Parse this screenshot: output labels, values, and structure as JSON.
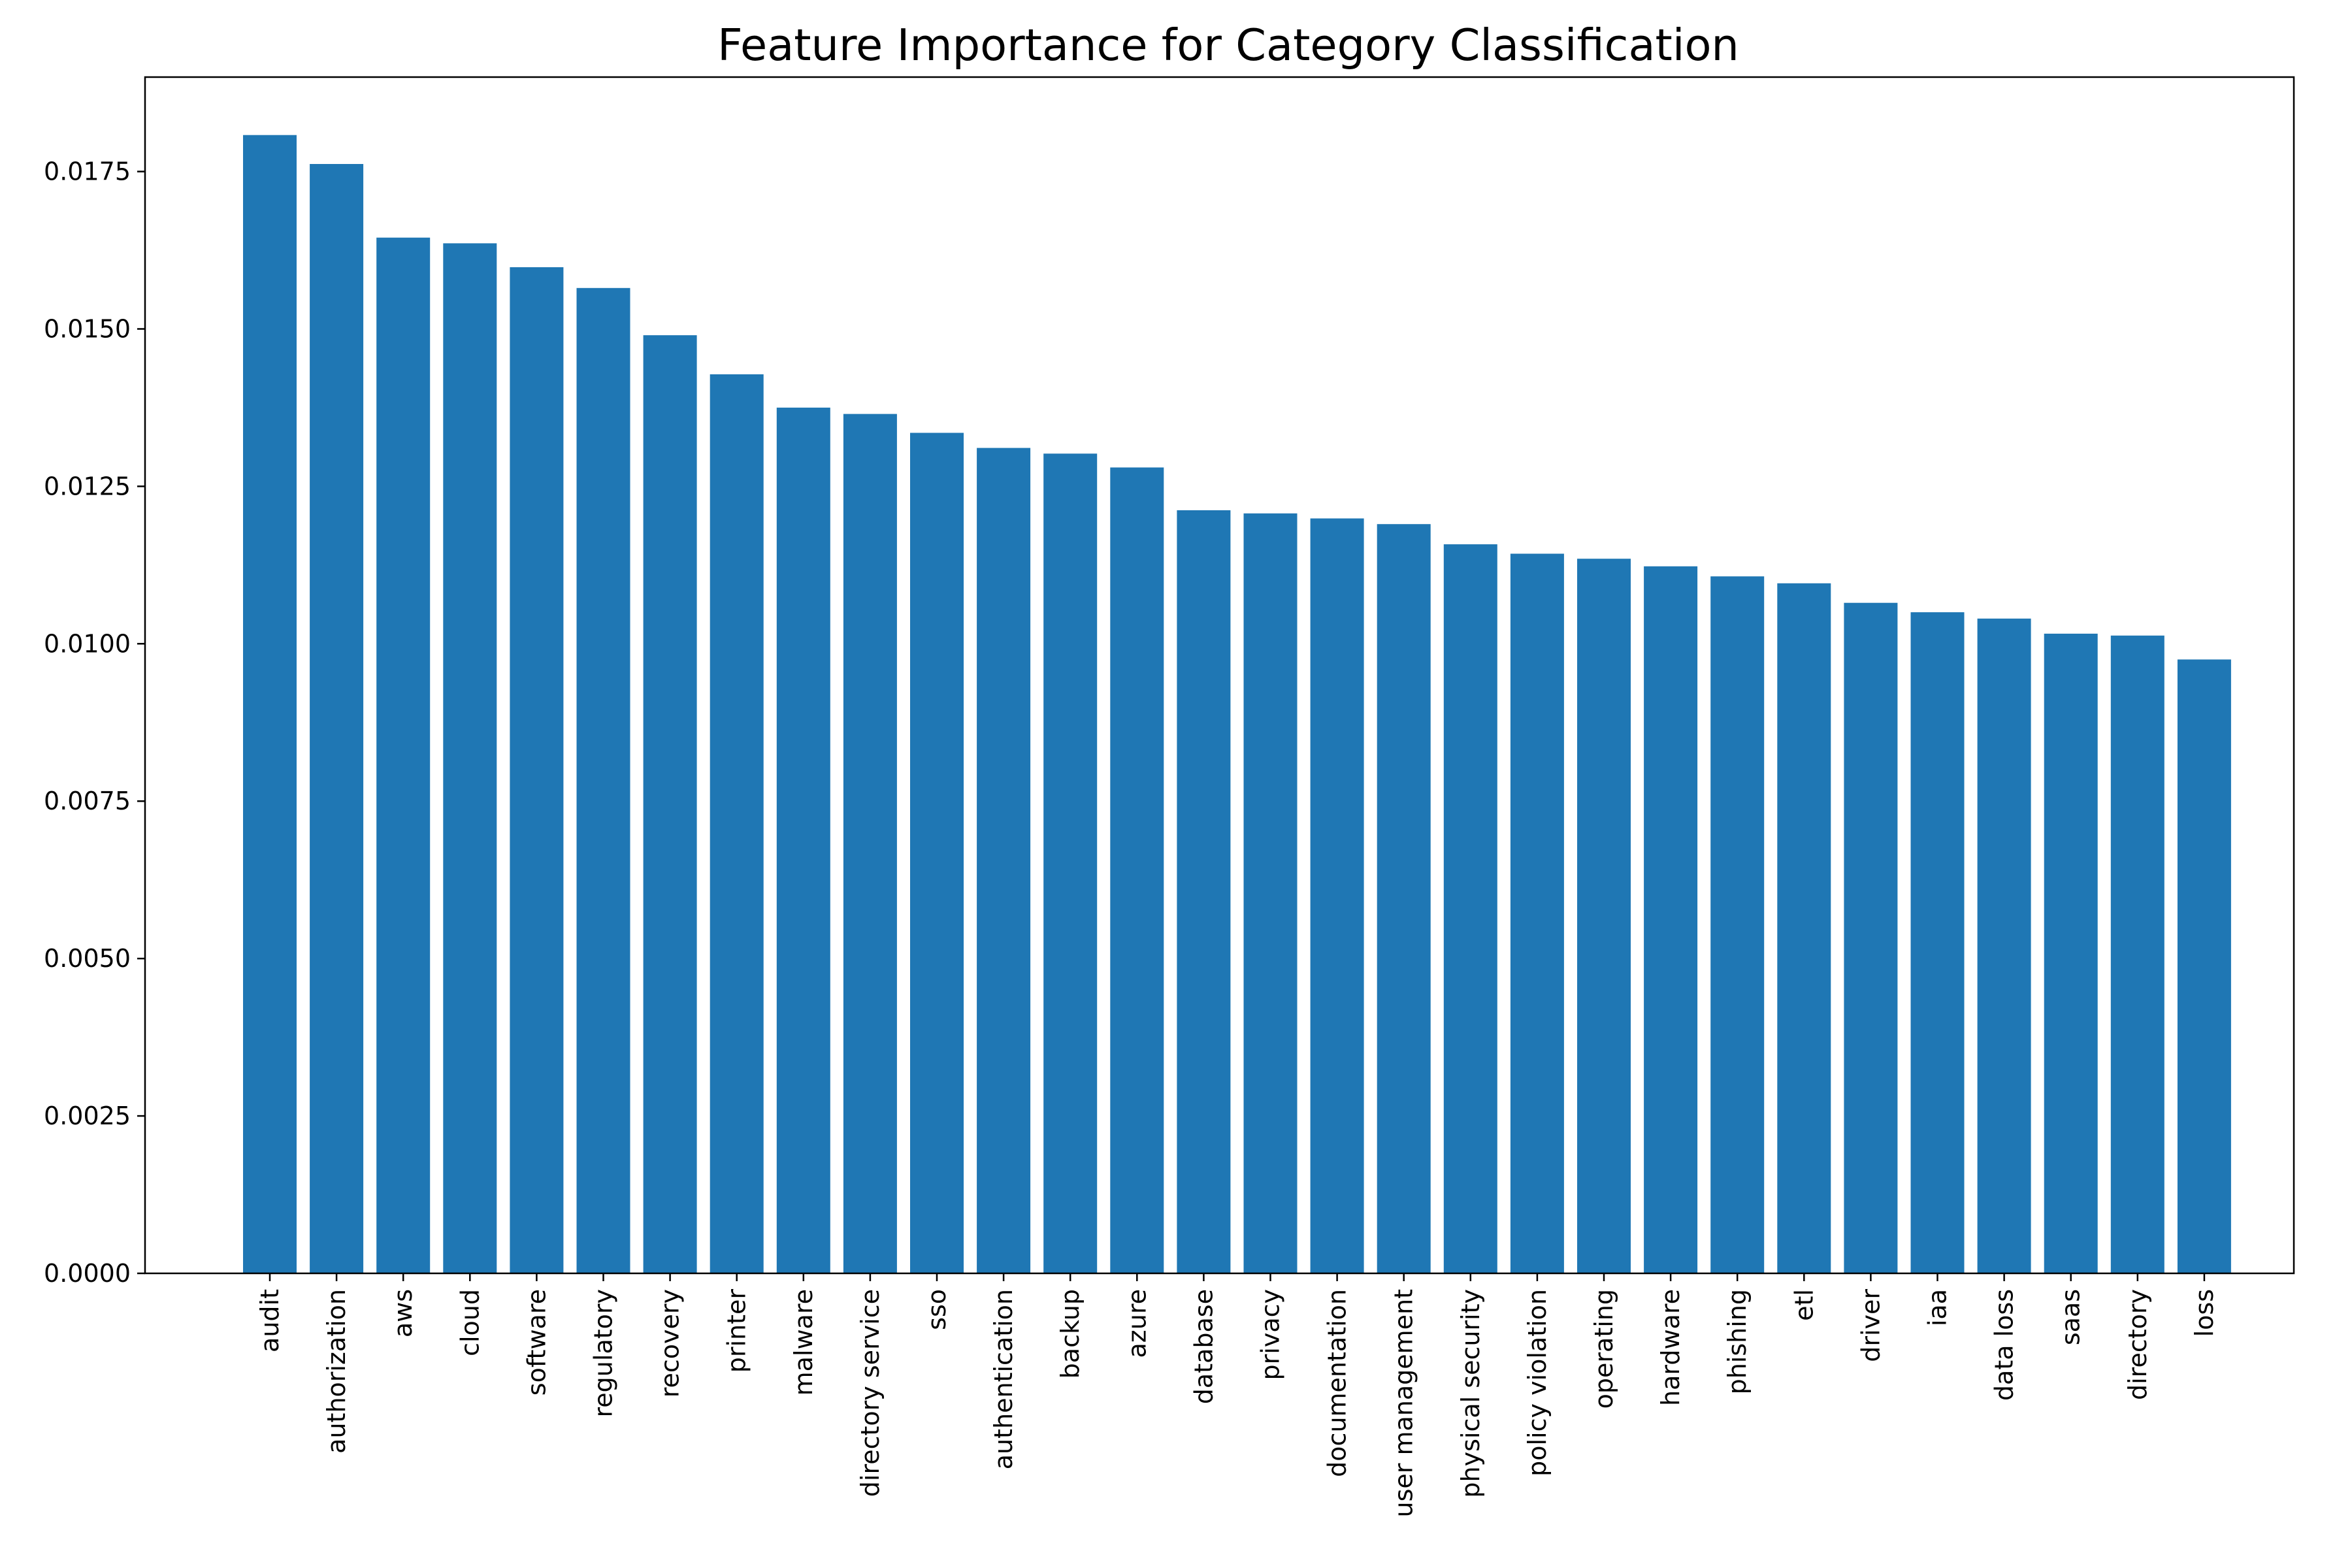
{
  "chart_data": {
    "type": "bar",
    "title": "Feature Importance for Category Classification",
    "xlabel": "",
    "ylabel": "",
    "ylim": [
      0,
      0.019
    ],
    "yticks": [
      0.0,
      0.0025,
      0.005,
      0.0075,
      0.01,
      0.0125,
      0.015,
      0.0175
    ],
    "ytick_labels": [
      "0.0000",
      "0.0025",
      "0.0050",
      "0.0075",
      "0.0100",
      "0.0125",
      "0.0150",
      "0.0175"
    ],
    "grid": false,
    "legend": "none",
    "bar_color": "#1f77b4",
    "categories": [
      "audit",
      "authorization",
      "aws",
      "cloud",
      "software",
      "regulatory",
      "recovery",
      "printer",
      "malware",
      "directory service",
      "sso",
      "authentication",
      "backup",
      "azure",
      "database",
      "privacy",
      "documentation",
      "user management",
      "physical security",
      "policy violation",
      "operating",
      "hardware",
      "phishing",
      "etl",
      "driver",
      "iaa",
      "data loss",
      "saas",
      "directory",
      "loss"
    ],
    "values": [
      0.01808,
      0.01762,
      0.01645,
      0.01636,
      0.01598,
      0.01565,
      0.0149,
      0.01428,
      0.01375,
      0.01365,
      0.01335,
      0.01311,
      0.01302,
      0.0128,
      0.01212,
      0.01207,
      0.01199,
      0.0119,
      0.01158,
      0.01143,
      0.01135,
      0.01123,
      0.01107,
      0.01096,
      0.01065,
      0.0105,
      0.0104,
      0.01016,
      0.01013,
      0.00975
    ]
  }
}
